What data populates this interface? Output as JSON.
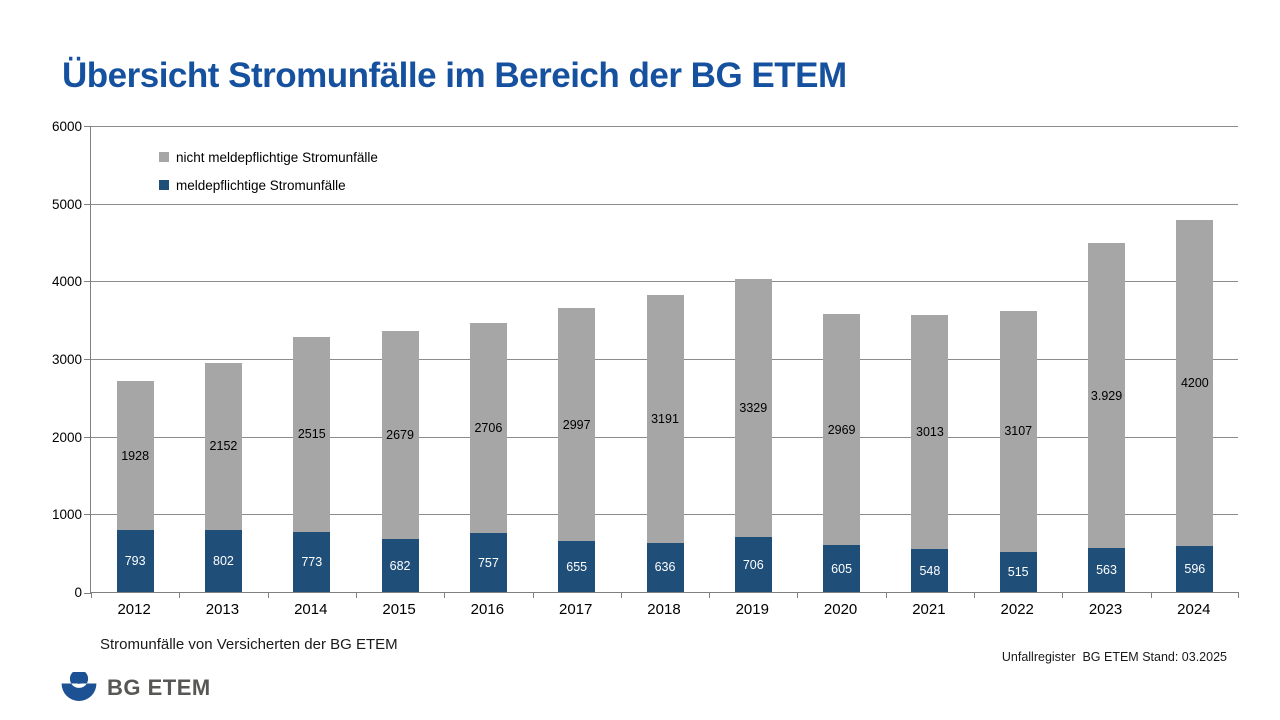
{
  "page_title": "Übersicht Stromunfälle im Bereich der BG ETEM",
  "chart_data": {
    "type": "bar",
    "stacked": true,
    "title": "Übersicht Stromunfälle im Bereich der BG ETEM",
    "categories": [
      "2012",
      "2013",
      "2014",
      "2015",
      "2016",
      "2017",
      "2018",
      "2019",
      "2020",
      "2021",
      "2022",
      "2023",
      "2024"
    ],
    "series": [
      {
        "name": "meldepflichtige Stromunfälle",
        "color": "#1F4E79",
        "label_color": "#FFFFFF",
        "values": [
          793,
          802,
          773,
          682,
          757,
          655,
          636,
          706,
          605,
          548,
          515,
          563,
          596
        ],
        "display_labels": [
          "793",
          "802",
          "773",
          "682",
          "757",
          "655",
          "636",
          "706",
          "605",
          "548",
          "515",
          "563",
          "596"
        ]
      },
      {
        "name": "nicht meldepflichtige Stromunfälle",
        "color": "#A6A6A6",
        "label_color": "#000000",
        "values": [
          1928,
          2152,
          2515,
          2679,
          2706,
          2997,
          3191,
          3329,
          2969,
          3013,
          3107,
          3929,
          4200
        ],
        "display_labels": [
          "1928",
          "2152",
          "2515",
          "2679",
          "2706",
          "2997",
          "3191",
          "3329",
          "2969",
          "3013",
          "3107",
          "3.929",
          "4200"
        ]
      }
    ],
    "legend": [
      {
        "label": "nicht meldepflichtige Stromunfälle",
        "color": "#A6A6A6"
      },
      {
        "label": "meldepflichtige Stromunfälle",
        "color": "#1F4E79"
      }
    ],
    "legend_position": "inside-top-left",
    "ylim": [
      0,
      6000
    ],
    "ytick_step": 1000,
    "yticks": [
      "0",
      "1000",
      "2000",
      "3000",
      "4000",
      "5000",
      "6000"
    ],
    "grid": true,
    "xlabel": "",
    "ylabel": ""
  },
  "footer": {
    "caption": "Stromunfälle von Versicherten der BG ETEM",
    "source": "Unfallregister  BG ETEM Stand: 03.2025"
  },
  "logo": {
    "text": "BG ETEM",
    "icon": "person-in-protecting-hand-icon",
    "icon_color": "#1C5194",
    "text_color": "#575756"
  }
}
